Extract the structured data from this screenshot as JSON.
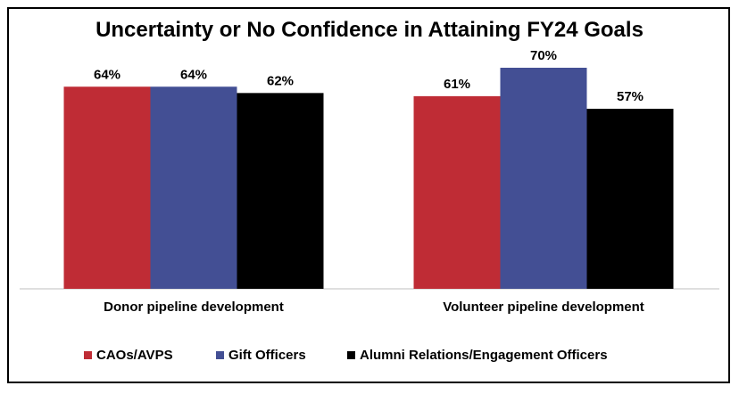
{
  "chart_data": {
    "type": "bar",
    "title": "Uncertainty or No Confidence in Attaining FY24 Goals",
    "categories": [
      "Donor pipeline development",
      "Volunteer pipeline development"
    ],
    "series": [
      {
        "name": "CAOs/AVPS",
        "values": [
          64,
          61
        ],
        "labels": [
          "64%",
          "61%"
        ],
        "color": "#BF2C35"
      },
      {
        "name": "Gift Officers",
        "values": [
          64,
          70
        ],
        "labels": [
          "64%",
          "70%"
        ],
        "color": "#434F94"
      },
      {
        "name": "Alumni Relations/Engagement Officers",
        "values": [
          62,
          57
        ],
        "labels": [
          "62%",
          "57%"
        ],
        "color": "#000000"
      }
    ],
    "ylim": [
      0,
      70
    ],
    "grid": false,
    "legend": "bottom"
  }
}
